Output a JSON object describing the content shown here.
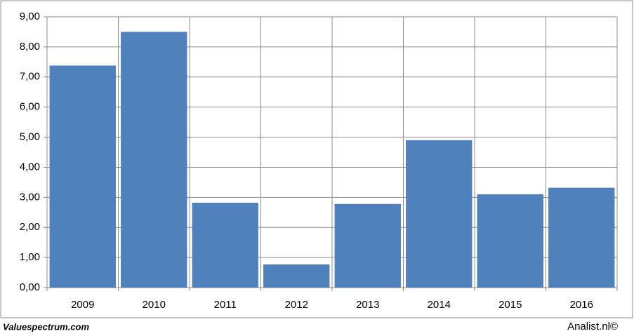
{
  "chart_data": {
    "type": "bar",
    "categories": [
      "2009",
      "2010",
      "2011",
      "2012",
      "2013",
      "2014",
      "2015",
      "2016"
    ],
    "values": [
      7.38,
      8.5,
      2.82,
      0.77,
      2.78,
      4.9,
      3.1,
      3.32
    ],
    "color": "#4f81bd",
    "ylim": [
      0,
      9
    ],
    "yticks": [
      {
        "value": 0,
        "label": "0,00"
      },
      {
        "value": 1,
        "label": "1,00"
      },
      {
        "value": 2,
        "label": "2,00"
      },
      {
        "value": 3,
        "label": "3,00"
      },
      {
        "value": 4,
        "label": "4,00"
      },
      {
        "value": 5,
        "label": "5,00"
      },
      {
        "value": 6,
        "label": "6,00"
      },
      {
        "value": 7,
        "label": "7,00"
      },
      {
        "value": 8,
        "label": "8,00"
      },
      {
        "value": 9,
        "label": "9,00"
      }
    ],
    "grid": true,
    "source": "Valuespectrum.com",
    "credit": "Analist.nl©"
  }
}
